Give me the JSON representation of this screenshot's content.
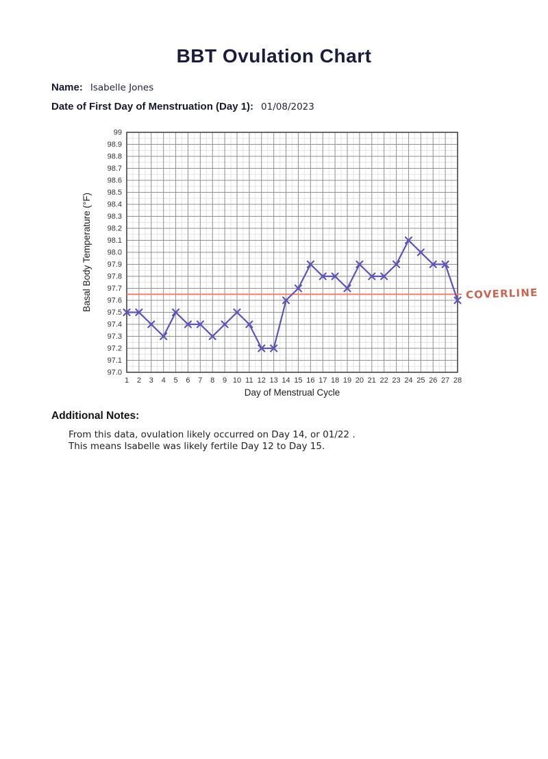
{
  "header": {
    "title": "BBT Ovulation Chart",
    "name_label": "Name:",
    "name_value": "Isabelle Jones",
    "date_label": "Date of First Day of Menstruation (Day 1):",
    "date_value": "01/08/2023"
  },
  "chart_data": {
    "type": "line",
    "title": "",
    "xlabel": "Day of Menstrual Cycle",
    "ylabel": "Basal Body Temperature (°F)",
    "x": [
      1,
      2,
      3,
      4,
      5,
      6,
      7,
      8,
      9,
      10,
      11,
      12,
      13,
      14,
      15,
      16,
      17,
      18,
      19,
      20,
      21,
      22,
      23,
      24,
      25,
      26,
      27,
      28
    ],
    "series": [
      {
        "name": "Basal Body Temperature",
        "values": [
          97.5,
          97.5,
          97.4,
          97.3,
          97.5,
          97.4,
          97.4,
          97.3,
          97.4,
          97.5,
          97.4,
          97.2,
          97.2,
          97.6,
          97.7,
          97.9,
          97.8,
          97.8,
          97.7,
          97.9,
          97.8,
          97.8,
          97.9,
          98.1,
          98.0,
          97.9,
          97.9,
          97.6
        ]
      }
    ],
    "ylim": [
      97.0,
      99.0
    ],
    "y_tick_step": 0.1,
    "y_tick_labels": [
      "99",
      "98.9",
      "98.8",
      "98.7",
      "98.6",
      "98.5",
      "98.4",
      "98.3",
      "98.2",
      "98.1",
      "98.0",
      "97.9",
      "97.8",
      "97.7",
      "97.6",
      "97.5",
      "97.4",
      "97.3",
      "97.2",
      "97.1",
      "97.0"
    ],
    "grid": "on",
    "legend": "none",
    "marker": "x",
    "annotations": [
      {
        "type": "hline",
        "y": 97.65,
        "label": "COVERLINE"
      }
    ],
    "colors": {
      "series": "#5b53bb",
      "coverline": "#f2806d",
      "coverline_label": "#c96450",
      "grid_major": "#8f8f8f",
      "grid_minor": "#e4e4e4",
      "border": "#434343",
      "tick_text": "#333333",
      "axis_title_text": "#1c1c1c"
    }
  },
  "notes": {
    "heading": "Additional Notes:",
    "lines": [
      "From this data, ovulation likely occurred on Day 14, or 01/22 .",
      "This means Isabelle was likely fertile Day 12 to Day 15."
    ]
  }
}
